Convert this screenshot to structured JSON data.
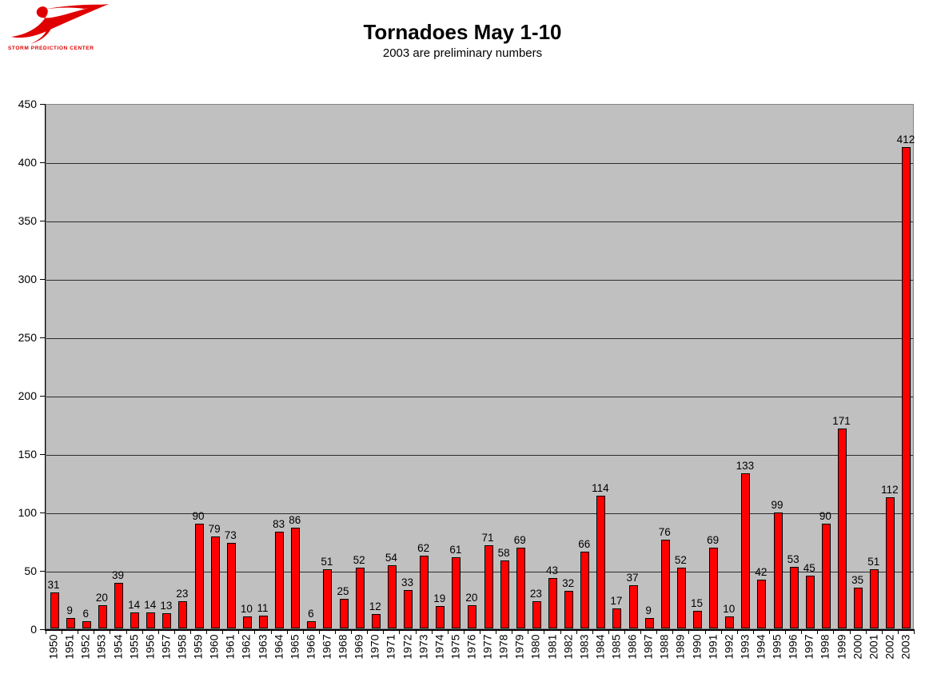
{
  "logo": {
    "caption": "STORM PREDICTION CENTER",
    "color": "#e00000"
  },
  "chart_data": {
    "type": "bar",
    "title": "Tornadoes May 1-10",
    "subtitle": "2003 are preliminary numbers",
    "xlabel": "",
    "ylabel": "",
    "categories": [
      "1950",
      "1951",
      "1952",
      "1953",
      "1954",
      "1955",
      "1956",
      "1957",
      "1958",
      "1959",
      "1960",
      "1961",
      "1962",
      "1963",
      "1964",
      "1965",
      "1966",
      "1967",
      "1968",
      "1969",
      "1970",
      "1971",
      "1972",
      "1973",
      "1974",
      "1975",
      "1976",
      "1977",
      "1978",
      "1979",
      "1980",
      "1981",
      "1982",
      "1983",
      "1984",
      "1985",
      "1986",
      "1987",
      "1988",
      "1989",
      "1990",
      "1991",
      "1992",
      "1993",
      "1994",
      "1995",
      "1996",
      "1997",
      "1998",
      "1999",
      "2000",
      "2001",
      "2002",
      "2003"
    ],
    "values": [
      31,
      9,
      6,
      20,
      39,
      14,
      14,
      13,
      23,
      90,
      79,
      73,
      10,
      11,
      83,
      86,
      6,
      51,
      25,
      52,
      12,
      54,
      33,
      62,
      19,
      61,
      20,
      71,
      58,
      69,
      23,
      43,
      32,
      66,
      114,
      17,
      37,
      9,
      76,
      52,
      15,
      69,
      10,
      133,
      42,
      99,
      53,
      45,
      90,
      171,
      35,
      51,
      112,
      412
    ],
    "ylim": [
      0,
      450
    ],
    "ytick_interval": 50,
    "yticks": [
      0,
      50,
      100,
      150,
      200,
      250,
      300,
      350,
      400,
      450
    ],
    "grid": true,
    "legend": "none",
    "value_labels": true,
    "bar_color": "#ff0000",
    "bar_border_color": "#000000",
    "plot_bg": "#c0c0c0"
  }
}
